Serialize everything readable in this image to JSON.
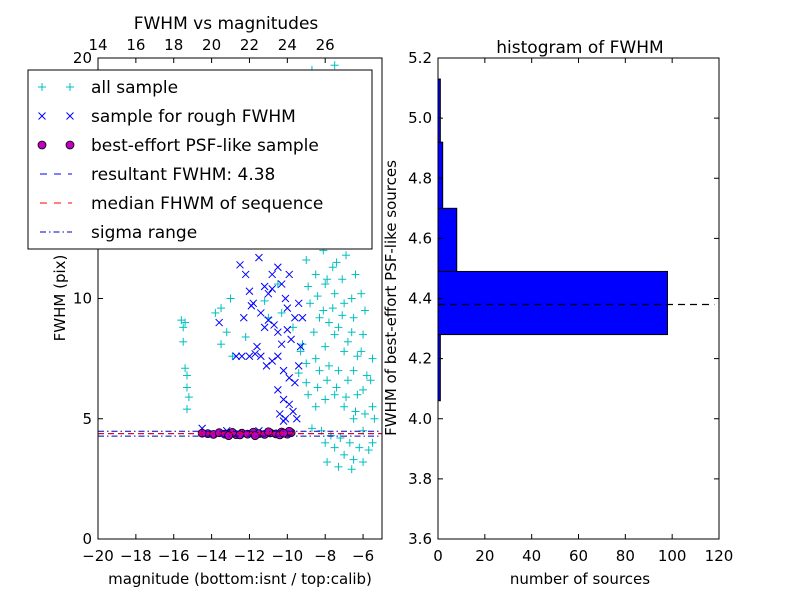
{
  "chart_data": [
    {
      "type": "scatter",
      "title": "FWHM vs magnitudes",
      "xlabel": "magnitude (bottom:isnt / top:calib)",
      "ylabel": "FWHM (pix)",
      "xlim": [
        -20,
        -5
      ],
      "ylim": [
        0,
        20
      ],
      "x_ticks": [
        -20,
        -18,
        -16,
        -14,
        -12,
        -10,
        -8,
        -6
      ],
      "x_tick_labels": [
        "−20",
        "−18",
        "−16",
        "−14",
        "−12",
        "−10",
        "−8",
        "−6"
      ],
      "y_ticks": [
        0,
        5,
        10,
        20
      ],
      "y_tick_labels": [
        "0",
        "5",
        "10",
        "20"
      ],
      "top_axis_ticks": [
        14,
        16,
        18,
        20,
        22,
        24,
        26
      ],
      "top_axis_tick_labels": [
        "14",
        "16",
        "18",
        "20",
        "22",
        "24",
        "26"
      ],
      "top_axis_offset": 34,
      "legend_location": "top-left",
      "series": [
        {
          "name": "all sample",
          "marker": "+",
          "color": "#00bfbf",
          "points": [
            [
              -15.6,
              9.1
            ],
            [
              -15.4,
              9.0
            ],
            [
              -15.5,
              8.8
            ],
            [
              -15.5,
              8.2
            ],
            [
              -15.4,
              7.1
            ],
            [
              -15.3,
              6.8
            ],
            [
              -15.3,
              6.3
            ],
            [
              -15.2,
              5.9
            ],
            [
              -15.3,
              5.4
            ],
            [
              -13.8,
              9.4
            ],
            [
              -13.5,
              9.6
            ],
            [
              -13.2,
              8.6
            ],
            [
              -13.0,
              10.0
            ],
            [
              -13.5,
              8.1
            ],
            [
              -12.2,
              8.4
            ],
            [
              -12.9,
              7.6
            ],
            [
              -11.2,
              9.9
            ],
            [
              -11.0,
              9.2
            ],
            [
              -10.5,
              10.6
            ],
            [
              -10.3,
              9.4
            ],
            [
              -9.7,
              8.8
            ],
            [
              -9.2,
              8.1
            ],
            [
              -9.0,
              7.3
            ],
            [
              -8.7,
              19.5
            ],
            [
              -7.5,
              19.7
            ],
            [
              -6.8,
              19.0
            ],
            [
              -6.2,
              18.7
            ],
            [
              -9.0,
              11.6
            ],
            [
              -8.5,
              11.0
            ],
            [
              -8.0,
              10.6
            ],
            [
              -7.5,
              10.2
            ],
            [
              -7.0,
              9.8
            ],
            [
              -6.5,
              9.2
            ],
            [
              -6.0,
              8.5
            ],
            [
              -5.5,
              7.5
            ],
            [
              -9.0,
              6.5
            ],
            [
              -8.5,
              7.5
            ],
            [
              -8.0,
              8.0
            ],
            [
              -7.5,
              8.5
            ],
            [
              -7.0,
              7.8
            ],
            [
              -6.5,
              7.0
            ],
            [
              -6.0,
              6.2
            ],
            [
              -5.5,
              5.5
            ],
            [
              -8.5,
              5.5
            ],
            [
              -8.0,
              5.8
            ],
            [
              -7.5,
              6.0
            ],
            [
              -7.0,
              5.5
            ],
            [
              -6.5,
              5.0
            ],
            [
              -6.0,
              4.5
            ],
            [
              -5.5,
              4.0
            ],
            [
              -8.0,
              4.0
            ],
            [
              -7.5,
              3.8
            ],
            [
              -7.0,
              3.5
            ],
            [
              -6.5,
              3.3
            ],
            [
              -6.0,
              3.2
            ],
            [
              -8.8,
              9.8
            ],
            [
              -8.3,
              9.2
            ],
            [
              -7.8,
              9.0
            ],
            [
              -7.3,
              8.8
            ],
            [
              -6.8,
              8.2
            ],
            [
              -6.3,
              7.6
            ],
            [
              -5.8,
              6.8
            ],
            [
              -8.6,
              12.5
            ],
            [
              -8.1,
              12.0
            ],
            [
              -7.6,
              11.3
            ],
            [
              -7.1,
              10.8
            ],
            [
              -6.6,
              10.0
            ],
            [
              -8.4,
              14.0
            ],
            [
              -7.9,
              13.5
            ],
            [
              -7.4,
              12.6
            ],
            [
              -6.9,
              11.8
            ],
            [
              -8.2,
              15.5
            ],
            [
              -7.7,
              14.8
            ],
            [
              -7.2,
              13.6
            ],
            [
              -8.0,
              16.5
            ],
            [
              -7.5,
              16.0
            ],
            [
              -7.0,
              15.2
            ],
            [
              -8.3,
              7.0
            ],
            [
              -7.8,
              7.2
            ],
            [
              -7.3,
              7.0
            ],
            [
              -6.8,
              6.6
            ],
            [
              -6.3,
              6.0
            ],
            [
              -5.9,
              5.2
            ],
            [
              -8.9,
              6.0
            ],
            [
              -8.4,
              6.3
            ],
            [
              -7.9,
              6.6
            ],
            [
              -7.4,
              6.3
            ],
            [
              -6.9,
              5.9
            ],
            [
              -6.4,
              5.3
            ],
            [
              -8.7,
              4.6
            ],
            [
              -8.2,
              4.5
            ],
            [
              -7.7,
              4.3
            ],
            [
              -7.2,
              4.2
            ],
            [
              -6.7,
              4.0
            ],
            [
              -6.2,
              3.8
            ],
            [
              -7.9,
              3.2
            ],
            [
              -7.3,
              3.0
            ],
            [
              -6.6,
              2.9
            ],
            [
              -9.3,
              7.8
            ],
            [
              -9.4,
              6.9
            ],
            [
              -8.6,
              8.6
            ],
            [
              -8.1,
              9.5
            ],
            [
              -7.6,
              9.6
            ],
            [
              -7.1,
              9.3
            ],
            [
              -6.6,
              8.6
            ],
            [
              -6.1,
              7.8
            ],
            [
              -5.6,
              6.6
            ],
            [
              -5.4,
              5.0
            ],
            [
              -5.7,
              3.7
            ],
            [
              -8.9,
              10.5
            ],
            [
              -8.4,
              10.1
            ],
            [
              -7.9,
              10.8
            ],
            [
              -7.4,
              11.5
            ],
            [
              -6.9,
              12.3
            ],
            [
              -6.4,
              11.0
            ],
            [
              -6.1,
              10.2
            ],
            [
              -5.9,
              9.5
            ],
            [
              -8.6,
              13.2
            ],
            [
              -8.2,
              14.7
            ],
            [
              -7.8,
              15.7
            ],
            [
              -7.3,
              14.4
            ],
            [
              -6.8,
              13.0
            ],
            [
              -6.7,
              12.6
            ],
            [
              -8.8,
              16.6
            ],
            [
              -8.4,
              17.5
            ],
            [
              -7.6,
              17.8
            ],
            [
              -7.1,
              16.8
            ],
            [
              -6.5,
              15.9
            ],
            [
              -8.1,
              18.5
            ],
            [
              -7.2,
              18.3
            ]
          ]
        },
        {
          "name": "sample for rough FWHM",
          "marker": "x",
          "color": "#0000ff",
          "points": [
            [
              -12.5,
              11.4
            ],
            [
              -12.2,
              11.0
            ],
            [
              -12.0,
              10.3
            ],
            [
              -11.8,
              9.8
            ],
            [
              -11.5,
              11.7
            ],
            [
              -11.2,
              10.5
            ],
            [
              -11.0,
              10.2
            ],
            [
              -10.8,
              11.0
            ],
            [
              -10.5,
              11.3
            ],
            [
              -10.3,
              10.6
            ],
            [
              -10.1,
              10.0
            ],
            [
              -9.9,
              11.0
            ],
            [
              -11.4,
              9.4
            ],
            [
              -11.2,
              8.8
            ],
            [
              -11.0,
              9.1
            ],
            [
              -10.7,
              8.9
            ],
            [
              -10.5,
              8.6
            ],
            [
              -10.3,
              8.1
            ],
            [
              -10.0,
              8.7
            ],
            [
              -9.8,
              8.3
            ],
            [
              -11.6,
              8.0
            ],
            [
              -11.4,
              7.6
            ],
            [
              -11.1,
              7.2
            ],
            [
              -10.8,
              7.4
            ],
            [
              -10.5,
              7.6
            ],
            [
              -10.2,
              7.0
            ],
            [
              -9.9,
              6.7
            ],
            [
              -9.6,
              6.5
            ],
            [
              -9.4,
              7.2
            ],
            [
              -12.7,
              7.6
            ],
            [
              -12.4,
              7.6
            ],
            [
              -12.0,
              7.6
            ],
            [
              -11.7,
              7.7
            ],
            [
              -10.5,
              6.2
            ],
            [
              -10.2,
              5.8
            ],
            [
              -9.9,
              5.6
            ],
            [
              -9.7,
              5.3
            ],
            [
              -9.5,
              5.0
            ],
            [
              -10.4,
              5.2
            ],
            [
              -10.1,
              5.0
            ],
            [
              -9.3,
              8.0
            ],
            [
              -9.2,
              9.2
            ],
            [
              -9.4,
              9.8
            ],
            [
              -10.9,
              12.2
            ],
            [
              -10.6,
              12.5
            ],
            [
              -10.8,
              10.4
            ],
            [
              -12.3,
              9.2
            ],
            [
              -11.9,
              9.7
            ],
            [
              -13.6,
              9.0
            ],
            [
              -10.0,
              9.6
            ],
            [
              -9.6,
              9.2
            ],
            [
              -10.2,
              4.9
            ],
            [
              -14.5,
              4.6
            ],
            [
              -13.2,
              4.5
            ],
            [
              -11.5,
              4.5
            ]
          ]
        },
        {
          "name": "best-effort PSF-like sample",
          "marker": "o",
          "color": "#bf00bf",
          "points": [
            [
              -14.2,
              4.38
            ],
            [
              -13.9,
              4.35
            ],
            [
              -13.6,
              4.42
            ],
            [
              -13.3,
              4.36
            ],
            [
              -13.0,
              4.4
            ],
            [
              -12.7,
              4.34
            ],
            [
              -12.4,
              4.4
            ],
            [
              -12.1,
              4.36
            ],
            [
              -11.8,
              4.44
            ],
            [
              -11.5,
              4.38
            ],
            [
              -11.2,
              4.35
            ],
            [
              -10.9,
              4.41
            ],
            [
              -10.6,
              4.37
            ],
            [
              -10.3,
              4.45
            ],
            [
              -10.0,
              4.36
            ],
            [
              -9.8,
              4.42
            ],
            [
              -12.9,
              4.43
            ],
            [
              -12.5,
              4.33
            ],
            [
              -11.0,
              4.46
            ],
            [
              -10.4,
              4.33
            ],
            [
              -9.9,
              4.48
            ],
            [
              -14.5,
              4.4
            ],
            [
              -13.1,
              4.3
            ],
            [
              -11.7,
              4.3
            ],
            [
              -10.2,
              4.4
            ]
          ]
        }
      ],
      "lines": [
        {
          "name": "resultant FWHM: 4.38",
          "y": 4.38,
          "style": "dashed",
          "color": "#0000ff"
        },
        {
          "name": "median FHWM of sequence",
          "y": 4.38,
          "style": "dashed",
          "color": "#ff0000"
        },
        {
          "name": "sigma range",
          "y": [
            4.28,
            4.48
          ],
          "style": "dashdot",
          "color": "#0000bf"
        }
      ],
      "legend": [
        {
          "label": "all sample",
          "marker": "+",
          "color": "#00bfbf"
        },
        {
          "label": "sample for rough FWHM",
          "marker": "x",
          "color": "#0000ff"
        },
        {
          "label": "best-effort PSF-like sample",
          "marker": "o",
          "color": "#bf00bf"
        },
        {
          "label": "resultant FWHM: 4.38",
          "marker": "dashed",
          "color": "#0000ff"
        },
        {
          "label": "median FHWM of sequence",
          "marker": "dashed",
          "color": "#ff0000"
        },
        {
          "label": "sigma range",
          "marker": "dashdot",
          "color": "#0000bf"
        }
      ]
    },
    {
      "type": "bar",
      "orientation": "horizontal",
      "title": "histogram of FWHM",
      "xlabel": "number of sources",
      "ylabel": "FWHM of best-effort PSF-like sources",
      "xlim": [
        0,
        120
      ],
      "ylim": [
        3.6,
        5.2
      ],
      "x_ticks": [
        0,
        20,
        40,
        60,
        80,
        100,
        120
      ],
      "x_tick_labels": [
        "0",
        "20",
        "40",
        "60",
        "80",
        "100",
        "120"
      ],
      "y_ticks": [
        3.6,
        3.8,
        4.0,
        4.2,
        4.4,
        4.6,
        4.8,
        5.0,
        5.2
      ],
      "y_tick_labels": [
        "3.6",
        "3.8",
        "4.0",
        "4.2",
        "4.4",
        "4.6",
        "4.8",
        "5.0",
        "5.2"
      ],
      "bar_color": "#0000ff",
      "bins": [
        {
          "from": 4.06,
          "to": 4.28,
          "count": 1
        },
        {
          "from": 4.28,
          "to": 4.49,
          "count": 98
        },
        {
          "from": 4.49,
          "to": 4.7,
          "count": 8
        },
        {
          "from": 4.7,
          "to": 4.92,
          "count": 2
        },
        {
          "from": 4.92,
          "to": 5.13,
          "count": 1
        }
      ],
      "reference_line": {
        "x_from": 0,
        "x_to": 118,
        "y": 4.38,
        "style": "dashed",
        "color": "#000000"
      }
    }
  ]
}
